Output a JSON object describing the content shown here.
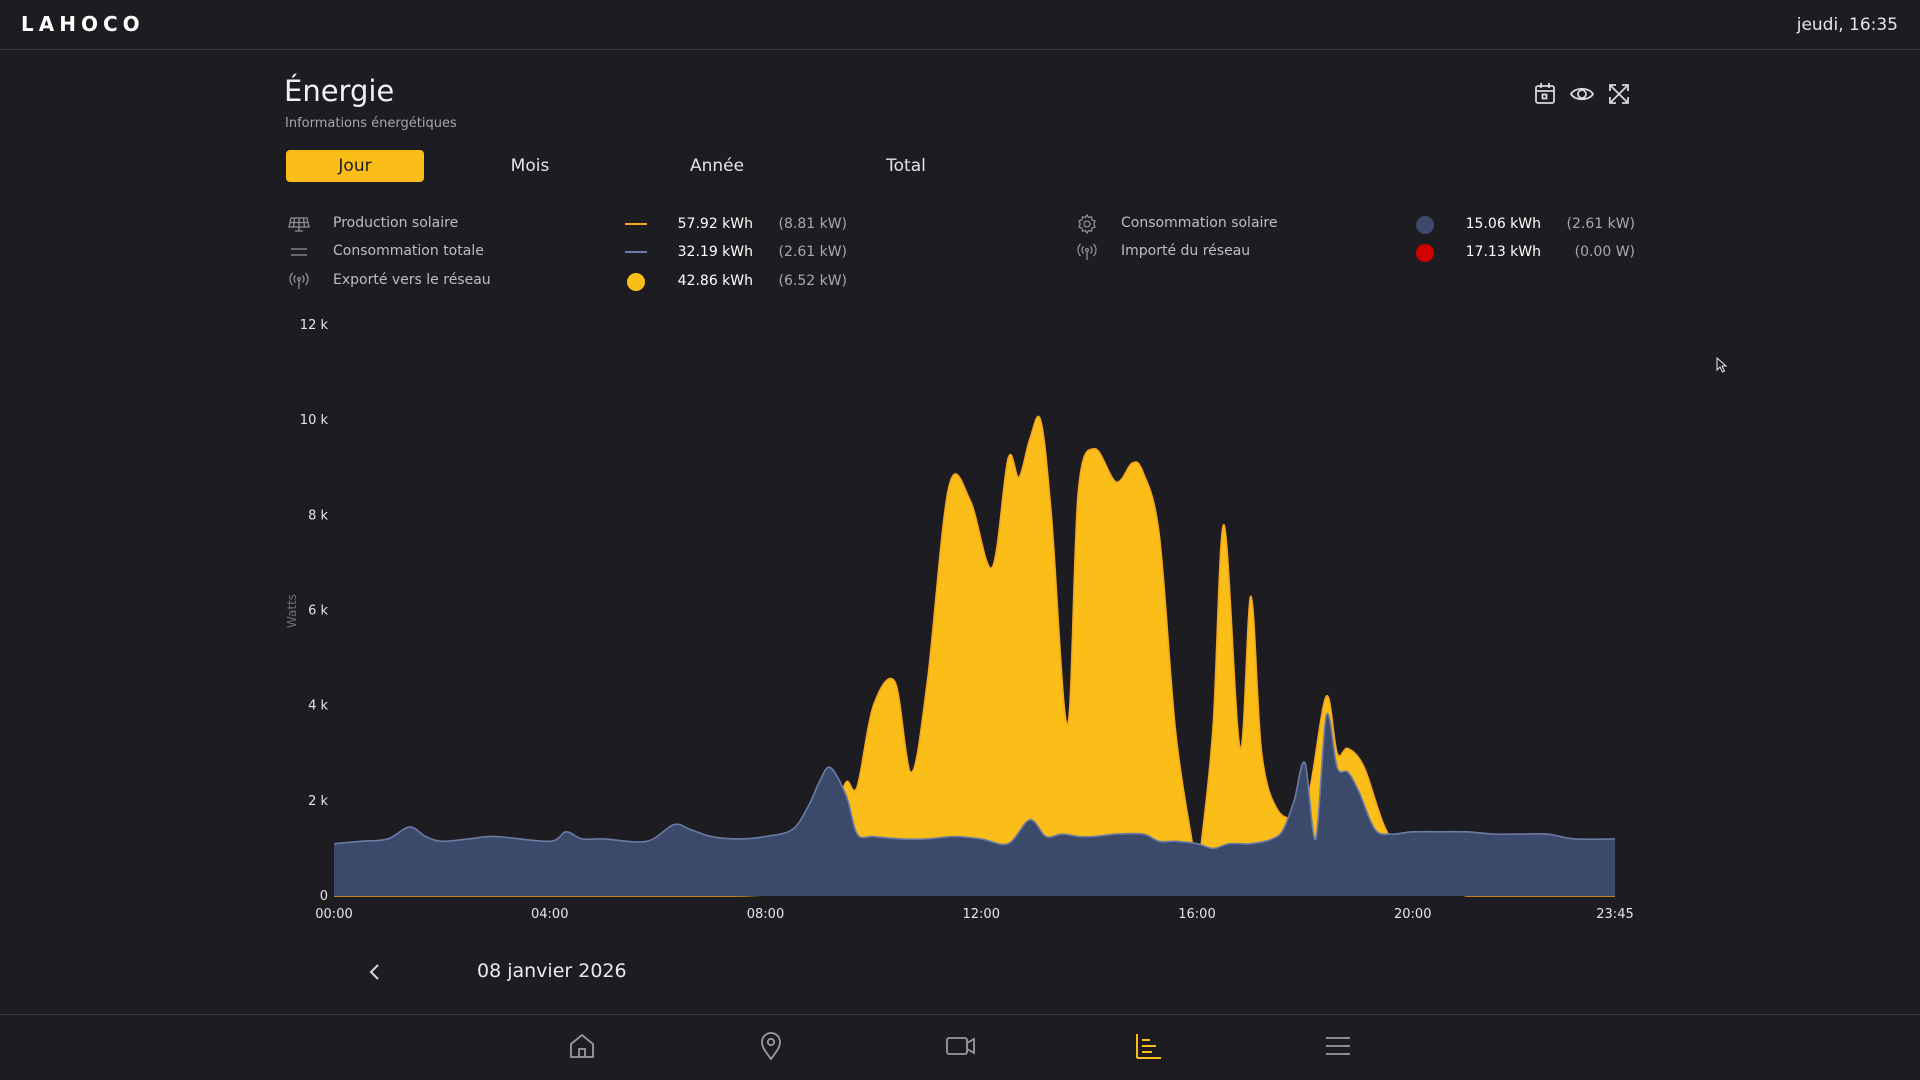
{
  "app": {
    "brand": "LAHOCO",
    "clock": "jeudi, 16:35"
  },
  "page": {
    "title": "Énergie",
    "subtitle": "Informations énergétiques"
  },
  "header_icons": [
    "calendar-icon",
    "eye-icon",
    "fullscreen-icon"
  ],
  "tabs": [
    {
      "label": "Jour",
      "active": true
    },
    {
      "label": "Mois",
      "active": false
    },
    {
      "label": "Année",
      "active": false
    },
    {
      "label": "Total",
      "active": false
    }
  ],
  "legend": [
    {
      "icon": "solar-panel-icon",
      "name": "Production solaire",
      "energy": "57.92 kWh",
      "power": "(8.81 kW)",
      "marker": "line",
      "color": "#f5a623"
    },
    {
      "icon": "consumption-lines-icon",
      "name": "Consommation totale",
      "energy": "32.19 kWh",
      "power": "(2.61 kW)",
      "marker": "line",
      "color": "#6b7ba6"
    },
    {
      "icon": "antenna-icon",
      "name": "Exporté vers le réseau",
      "energy": "42.86 kWh",
      "power": "(6.52 kW)",
      "marker": "dot",
      "color": "#fbbd17"
    },
    {
      "icon": "gear-icon",
      "name": "Consommation solaire",
      "energy": "15.06 kWh",
      "power": "(2.61 kW)",
      "marker": "dot",
      "color": "#3b4a6b"
    },
    {
      "icon": "antenna-icon",
      "name": "Importé du réseau",
      "energy": "17.13 kWh",
      "power": "(0.00 W)",
      "marker": "dot",
      "color": "#d10000"
    }
  ],
  "chart_data": {
    "type": "area",
    "ylabel": "Watts",
    "ylim": [
      0,
      12000
    ],
    "yticks": [
      0,
      2000,
      4000,
      6000,
      8000,
      10000,
      12000
    ],
    "ytick_labels": [
      "0",
      "2 k",
      "4 k",
      "6 k",
      "8 k",
      "10 k",
      "12 k"
    ],
    "xlim": [
      0,
      23.75
    ],
    "xticks": [
      0,
      4,
      8,
      12,
      16,
      20,
      23.75
    ],
    "xtick_labels": [
      "00:00",
      "04:00",
      "08:00",
      "12:00",
      "16:00",
      "20:00",
      "23:45"
    ],
    "grid": false,
    "series": [
      {
        "name": "Production solaire",
        "color": "#fbbd17",
        "stroke": "#f5a623",
        "x": [
          0,
          7.4,
          7.6,
          7.9,
          8.2,
          8.5,
          8.8,
          9.0,
          9.3,
          9.5,
          9.7,
          10.0,
          10.4,
          10.7,
          11.0,
          11.4,
          11.8,
          12.2,
          12.5,
          12.7,
          12.9,
          13.1,
          13.3,
          13.6,
          13.8,
          14.1,
          14.5,
          14.8,
          15.0,
          15.3,
          15.6,
          15.9,
          16.0,
          16.1,
          16.3,
          16.5,
          16.8,
          17.0,
          17.2,
          17.5,
          17.9,
          18.1,
          18.4,
          18.6,
          18.8,
          19.1,
          19.5,
          20.0,
          20.5,
          21.0,
          21.5,
          22.0,
          23.75
        ],
        "values": [
          0,
          0,
          100,
          200,
          500,
          300,
          600,
          1000,
          1800,
          2400,
          2300,
          4000,
          4500,
          2600,
          4500,
          8600,
          8300,
          6900,
          9200,
          8800,
          9600,
          10000,
          8000,
          3600,
          8500,
          9400,
          8700,
          9100,
          8900,
          7600,
          3500,
          1200,
          600,
          1300,
          3600,
          7800,
          3100,
          6300,
          3000,
          1800,
          1700,
          2300,
          4200,
          3000,
          3100,
          2700,
          1400,
          600,
          200,
          0,
          0,
          0,
          0
        ]
      },
      {
        "name": "Consommation totale",
        "color": "#3b4a6b",
        "stroke": "#6b7ba6",
        "x": [
          0,
          0.5,
          1.0,
          1.4,
          1.7,
          2.0,
          2.5,
          3.0,
          4.0,
          4.3,
          4.6,
          5.0,
          5.8,
          6.3,
          6.6,
          7.0,
          7.5,
          8.0,
          8.5,
          8.8,
          9.0,
          9.2,
          9.5,
          9.7,
          10.0,
          10.5,
          11.0,
          11.5,
          12.0,
          12.5,
          12.9,
          13.2,
          13.5,
          13.8,
          14.1,
          14.5,
          15.0,
          15.3,
          15.6,
          16.0,
          16.3,
          16.6,
          17.0,
          17.4,
          17.6,
          17.8,
          18.0,
          18.2,
          18.4,
          18.6,
          18.8,
          19.0,
          19.3,
          19.6,
          20.0,
          20.5,
          21.0,
          21.5,
          22.0,
          22.5,
          23.0,
          23.75
        ],
        "values": [
          1100,
          1150,
          1200,
          1450,
          1250,
          1150,
          1200,
          1250,
          1150,
          1350,
          1200,
          1200,
          1150,
          1500,
          1400,
          1250,
          1200,
          1250,
          1400,
          1900,
          2400,
          2700,
          2100,
          1300,
          1250,
          1200,
          1200,
          1250,
          1200,
          1100,
          1600,
          1250,
          1300,
          1250,
          1250,
          1300,
          1300,
          1150,
          1150,
          1100,
          1000,
          1100,
          1100,
          1200,
          1400,
          2000,
          2800,
          1200,
          3800,
          2700,
          2600,
          2200,
          1400,
          1300,
          1350,
          1350,
          1350,
          1300,
          1300,
          1300,
          1200,
          1200
        ]
      },
      {
        "name": "Importé du réseau",
        "color": "#d10000",
        "x": [
          0,
          0.5,
          1.0,
          1.4,
          1.7,
          2.0,
          2.5,
          3.0,
          4.0,
          4.3,
          4.6,
          5.0,
          5.8,
          6.3,
          6.6,
          7.0,
          7.4,
          7.6,
          7.9,
          8.2,
          8.5,
          8.8,
          9.0,
          9.3,
          9.5,
          9.7,
          10.0,
          12.0,
          16.0,
          17.4,
          17.6,
          17.8,
          18.0,
          18.2,
          18.4,
          18.6,
          19.0,
          19.3,
          19.6,
          20.0,
          20.5,
          21.0,
          21.5,
          22.0,
          22.5,
          23.0,
          23.75
        ],
        "values": [
          1100,
          1150,
          1200,
          1450,
          1250,
          1150,
          1200,
          1250,
          1150,
          1350,
          1200,
          1200,
          1150,
          1500,
          1400,
          1250,
          1200,
          1100,
          1050,
          900,
          1100,
          1300,
          1400,
          600,
          0,
          0,
          0,
          0,
          0,
          0,
          0,
          0,
          0,
          0,
          0,
          0,
          0,
          0,
          0,
          100,
          750,
          1150,
          1300,
          1300,
          1300,
          1200,
          1200
        ]
      }
    ]
  },
  "date_nav": {
    "date": "08 janvier 2026",
    "prev_icon": "chevron-left-icon"
  },
  "bottom_nav": [
    {
      "icon": "home-icon",
      "active": false
    },
    {
      "icon": "location-pin-icon",
      "active": false
    },
    {
      "icon": "camera-icon",
      "active": false
    },
    {
      "icon": "chart-icon",
      "active": true
    },
    {
      "icon": "menu-icon",
      "active": false
    }
  ],
  "colors": {
    "accent": "#fbbd17",
    "background": "#1c1c21"
  }
}
